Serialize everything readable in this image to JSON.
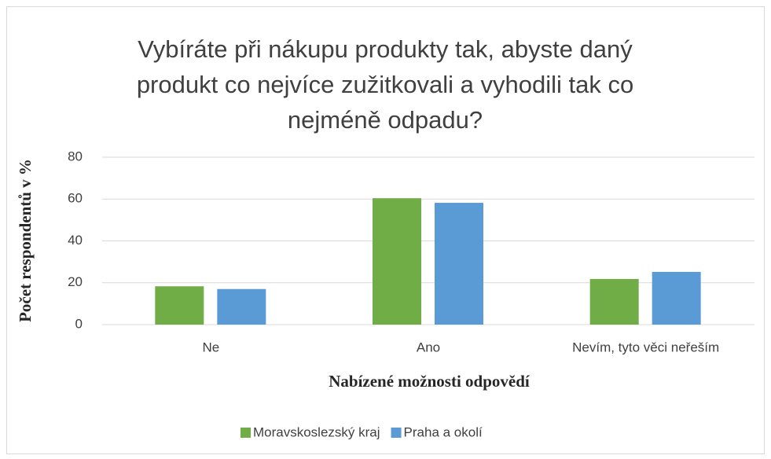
{
  "chart_data": {
    "type": "bar",
    "title": "Vybíráte při nákupu produkty tak, abyste daný produkt co nejvíce zužitkovali a vyhodili tak co nejméně odpadu?",
    "x_label": "Nabízené možnosti odpovědí",
    "y_label": "Počet respondentů v %",
    "categories": [
      "Ne",
      "Ano",
      "Nevím, tyto věci neřeším"
    ],
    "series": [
      {
        "name": "Moravskoslezský kraj",
        "color": "#70ad47",
        "values": [
          18.3,
          60.4,
          21.8
        ]
      },
      {
        "name": "Praha a okolí",
        "color": "#5b9bd5",
        "values": [
          17.0,
          58.2,
          25.2
        ]
      }
    ],
    "ylim": [
      0,
      80
    ],
    "yticks": [
      0,
      20,
      40,
      60,
      80
    ],
    "grid": true,
    "legend": "bottom"
  }
}
